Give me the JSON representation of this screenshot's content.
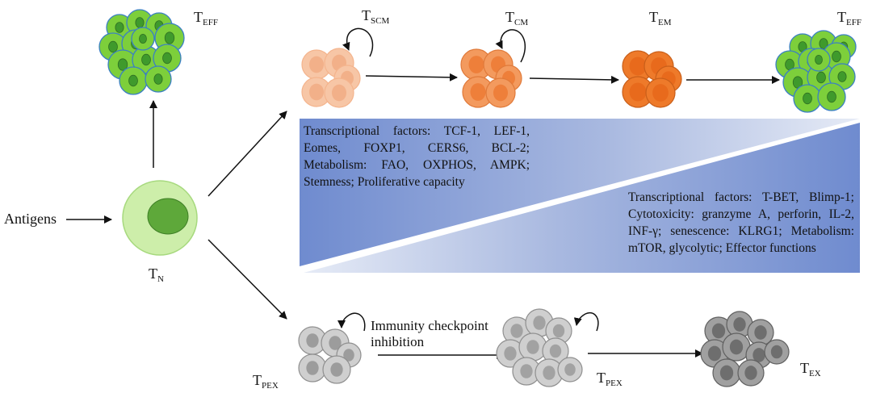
{
  "antigens": "Antigens",
  "cells": {
    "tn": {
      "main": "T",
      "sub": "N"
    },
    "teff_top": {
      "main": "T",
      "sub": "EFF"
    },
    "tscm": {
      "main": "T",
      "sub": "SCM"
    },
    "tcm": {
      "main": "T",
      "sub": "CM"
    },
    "tem": {
      "main": "T",
      "sub": "EM"
    },
    "teff_right": {
      "main": "T",
      "sub": "EFF"
    },
    "tpex_left": {
      "main": "T",
      "sub": "PEX"
    },
    "tpex_mid": {
      "main": "T",
      "sub": "PEX"
    },
    "tex": {
      "main": "T",
      "sub": "EX"
    }
  },
  "checkpoint_label": "Immunity checkpoint inhibition",
  "left_wedge_text": "Transcriptional factors: TCF-1, LEF-1, Eomes, FOXP1, CERS6, BCL-2; Metabolism: FAO, OXPHOS, AMPK; Stemness; Proliferative capacity",
  "right_wedge_text": "Transcriptional factors: T-BET, Blimp-1; Cytotoxicity: granzyme A, perforin, IL-2, INF-γ; senescence: KLRG1; Metabolism: mTOR, glycolytic; Effector functions",
  "colors": {
    "green_fill": "#7dcf3b",
    "green_nucleus": "#3f9a2c",
    "green_outline": "#3a7fc4",
    "naive_outer": "#cdeeaa",
    "naive_inner": "#5ea83a",
    "tscm_fill": "#f7c6a6",
    "tcm_fill": "#f39a5e",
    "tem_fill": "#ee7a2a",
    "gray_light": "#cfcfcf",
    "gray_mid": "#a9a9a9",
    "gray_dark": "#8a8a8a",
    "wedge_blue": "#7d97d4"
  }
}
